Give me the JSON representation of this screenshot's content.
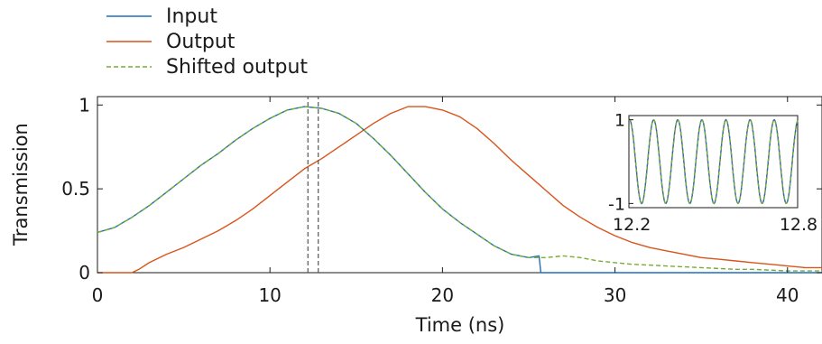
{
  "chart_data": [
    {
      "type": "line",
      "title": "",
      "xlabel": "Time (ns)",
      "ylabel": "Transmission",
      "xlim": [
        0,
        42
      ],
      "ylim": [
        0,
        1.05
      ],
      "xticks": [
        "0",
        "10",
        "20",
        "30",
        "40"
      ],
      "yticks": [
        "0",
        "0.5",
        "1"
      ],
      "grid": false,
      "legend_position": "top-left, outside plot",
      "markers": {
        "vertical_dashed_lines_at_x": [
          12.2,
          12.8
        ],
        "color": "#555555"
      },
      "series": [
        {
          "name": "Input",
          "color": "#1f6fbf",
          "style": "solid",
          "x": [
            0,
            1,
            2,
            3,
            4,
            5,
            6,
            7,
            8,
            9,
            10,
            11,
            12,
            13,
            14,
            15,
            16,
            17,
            18,
            19,
            20,
            21,
            22,
            23,
            24,
            25,
            25.6,
            25.7,
            26,
            30,
            35,
            40,
            42
          ],
          "y": [
            0.24,
            0.27,
            0.33,
            0.4,
            0.48,
            0.56,
            0.64,
            0.71,
            0.79,
            0.86,
            0.92,
            0.97,
            0.99,
            0.98,
            0.95,
            0.89,
            0.8,
            0.7,
            0.59,
            0.48,
            0.38,
            0.3,
            0.23,
            0.16,
            0.11,
            0.09,
            0.1,
            0.0,
            0.0,
            0.0,
            0.0,
            0.0,
            0.0
          ]
        },
        {
          "name": "Output",
          "color": "#d9541a",
          "style": "solid",
          "x": [
            0,
            1,
            2,
            2.4,
            3,
            4,
            5,
            6,
            7,
            8,
            9,
            10,
            11,
            12,
            13,
            14,
            15,
            16,
            17,
            18,
            19,
            20,
            21,
            22,
            23,
            24,
            25,
            26,
            27,
            28,
            29,
            30,
            31,
            32,
            33,
            34,
            35,
            36,
            37,
            38,
            39,
            40,
            41,
            42
          ],
          "y": [
            0.0,
            0.0,
            0.0,
            0.02,
            0.06,
            0.11,
            0.15,
            0.2,
            0.25,
            0.31,
            0.38,
            0.46,
            0.54,
            0.62,
            0.68,
            0.75,
            0.82,
            0.89,
            0.95,
            0.99,
            0.99,
            0.97,
            0.93,
            0.86,
            0.77,
            0.67,
            0.58,
            0.49,
            0.4,
            0.33,
            0.27,
            0.22,
            0.18,
            0.15,
            0.13,
            0.11,
            0.09,
            0.08,
            0.07,
            0.06,
            0.05,
            0.04,
            0.03,
            0.03
          ]
        },
        {
          "name": "Shifted output",
          "color": "#77ac30",
          "style": "dashed",
          "x": [
            0,
            1,
            2,
            3,
            4,
            5,
            6,
            7,
            8,
            9,
            10,
            11,
            12,
            13,
            14,
            15,
            16,
            17,
            18,
            19,
            20,
            21,
            22,
            23,
            24,
            25,
            26,
            27,
            28,
            29,
            30,
            31,
            32,
            33,
            34,
            35,
            36,
            37,
            38,
            39,
            40,
            41,
            42
          ],
          "y": [
            0.24,
            0.27,
            0.33,
            0.4,
            0.48,
            0.56,
            0.64,
            0.71,
            0.79,
            0.86,
            0.92,
            0.97,
            0.99,
            0.98,
            0.95,
            0.89,
            0.8,
            0.7,
            0.59,
            0.48,
            0.38,
            0.3,
            0.23,
            0.16,
            0.11,
            0.09,
            0.09,
            0.1,
            0.09,
            0.07,
            0.06,
            0.05,
            0.045,
            0.04,
            0.035,
            0.03,
            0.025,
            0.02,
            0.02,
            0.015,
            0.01,
            0.01,
            0.01
          ]
        }
      ]
    },
    {
      "type": "line",
      "title": "",
      "xlabel": "",
      "ylabel": "",
      "xlim": [
        12.2,
        12.8
      ],
      "ylim": [
        -1.1,
        1.1
      ],
      "xticks": [
        "12.2",
        "12.8"
      ],
      "yticks": [
        "1",
        "-1"
      ],
      "grid": false,
      "periods": 7,
      "series": [
        {
          "name": "Input",
          "color": "#1f6fbf",
          "style": "solid",
          "phase_deg": 80
        },
        {
          "name": "Output",
          "color": "#d9541a",
          "style": "solid",
          "phase_deg": 80
        },
        {
          "name": "Shifted output",
          "color": "#77ac30",
          "style": "dashed",
          "phase_deg": 80
        }
      ]
    }
  ]
}
